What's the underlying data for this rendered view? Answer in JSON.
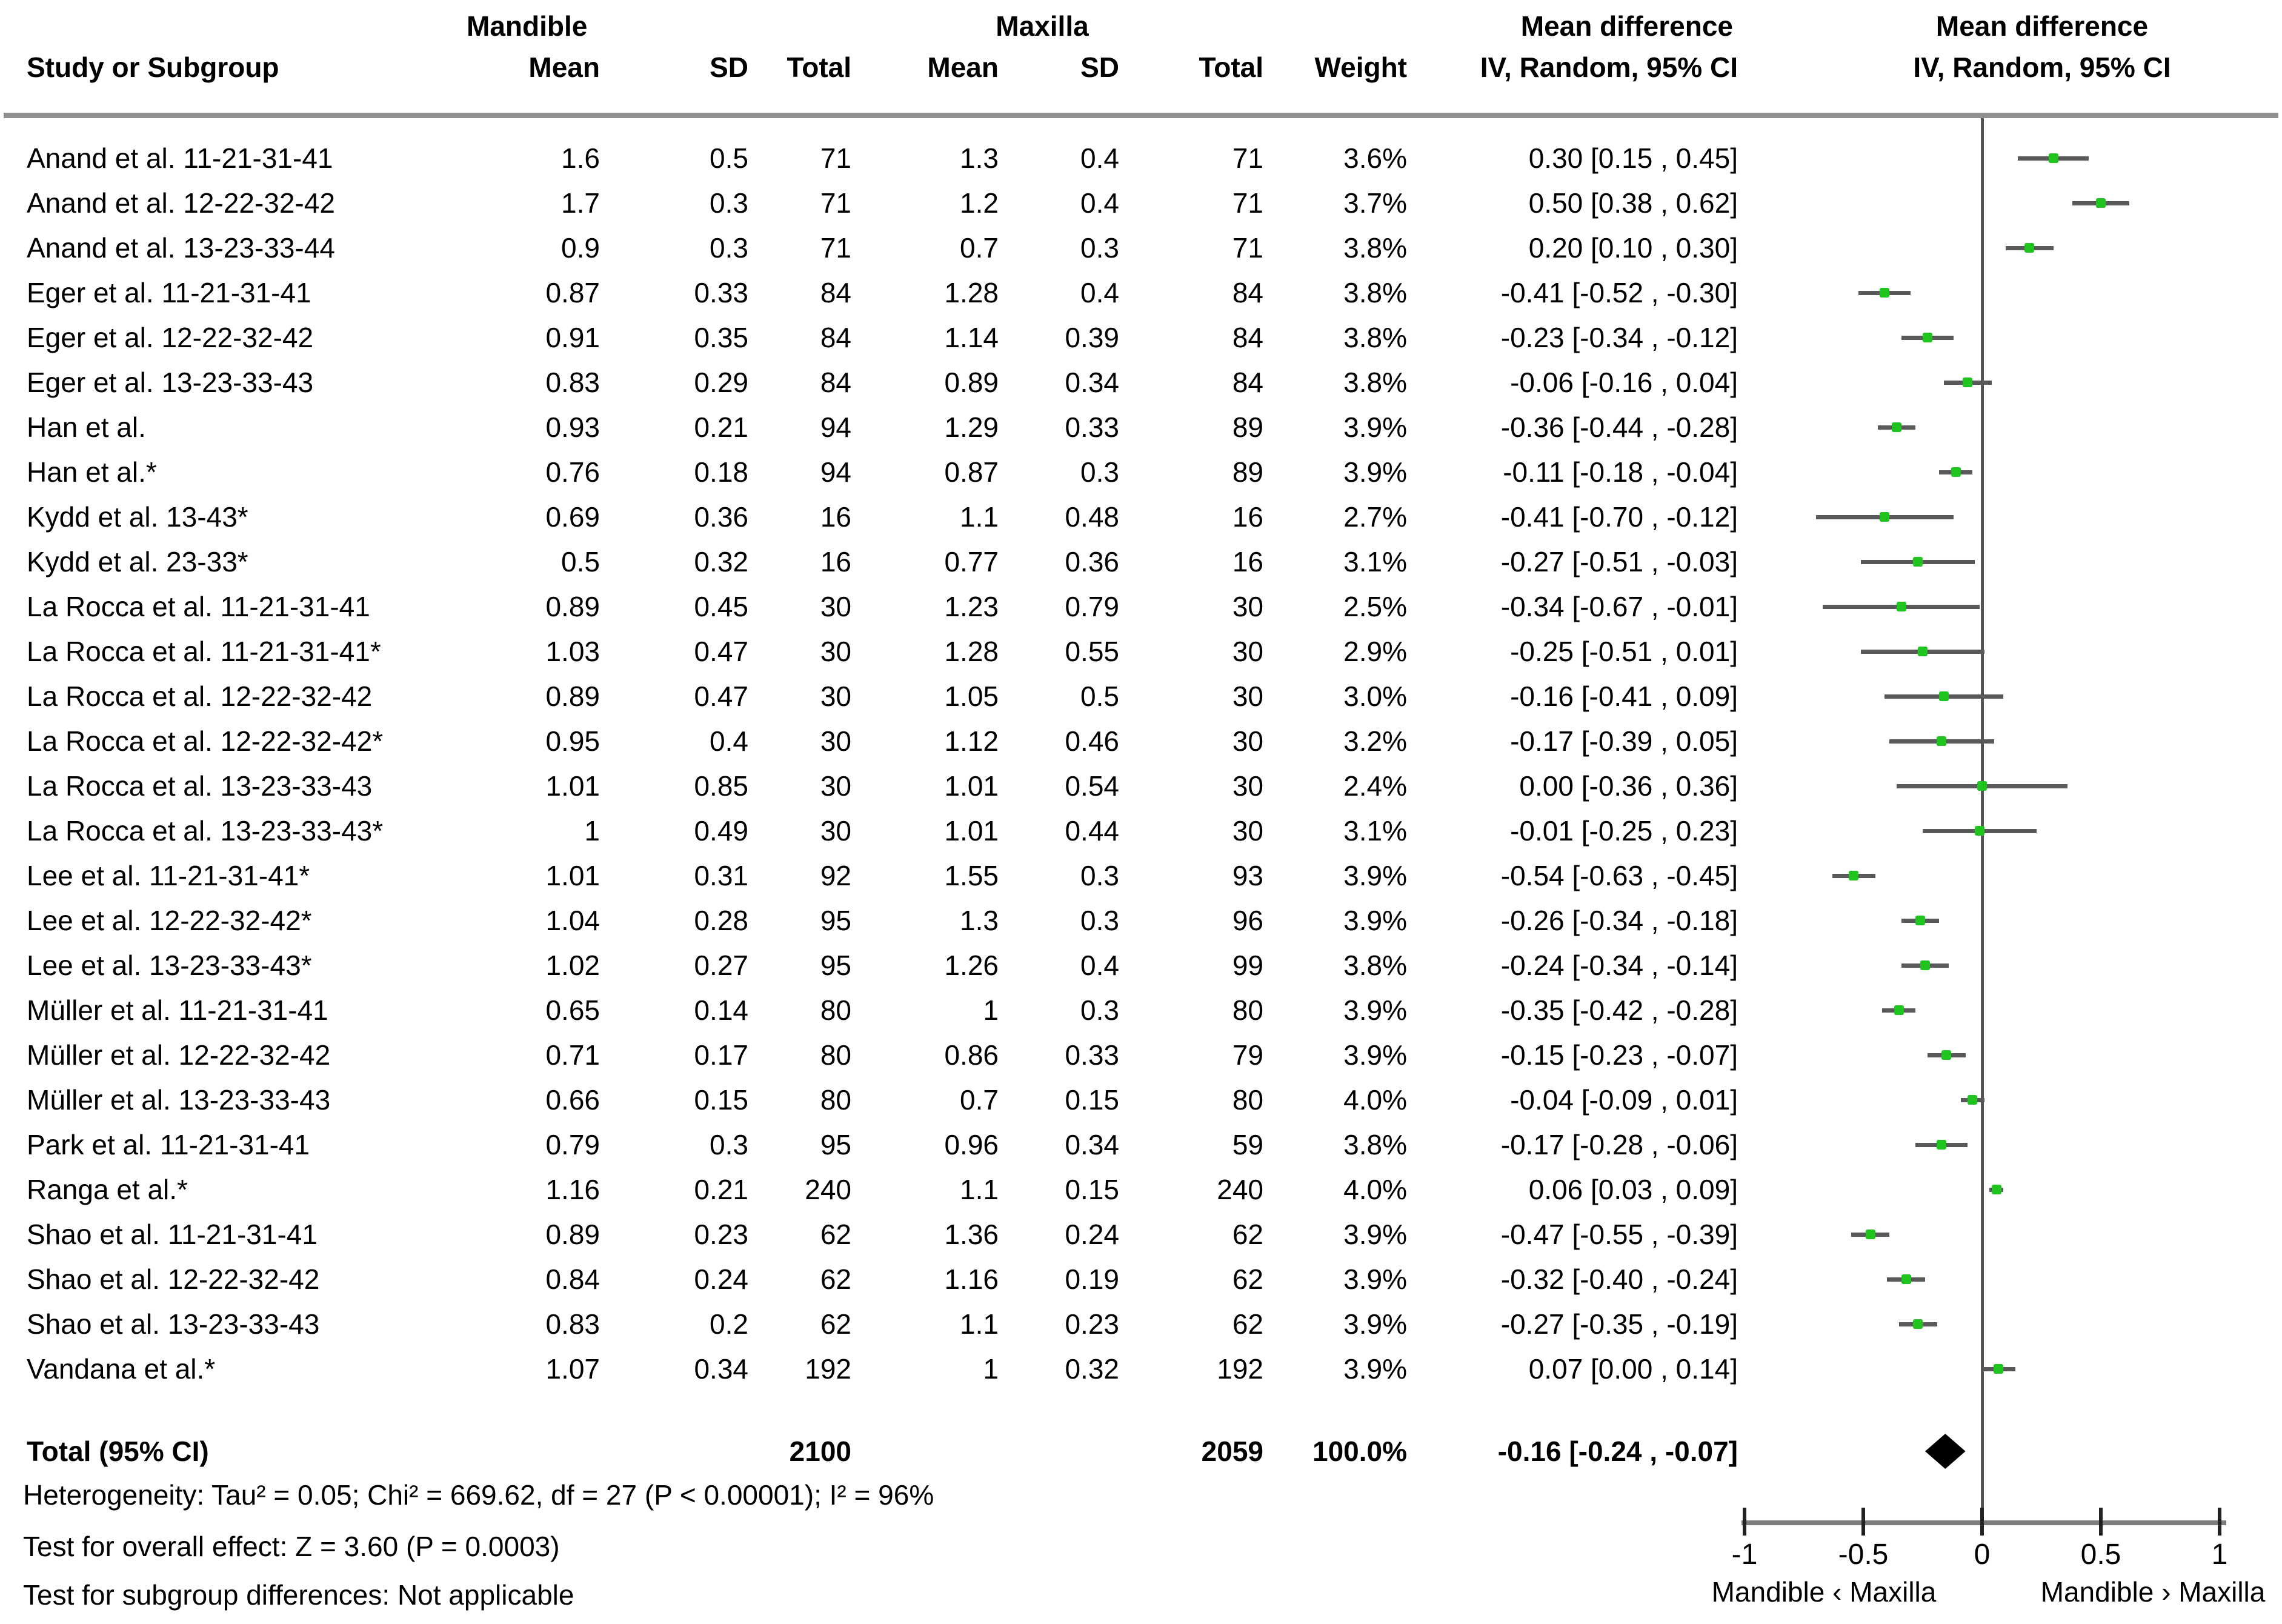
{
  "header": {
    "study_col": "Study or Subgroup",
    "group1": "Mandible",
    "group2": "Maxilla",
    "mean1": "Mean",
    "sd1": "SD",
    "total1": "Total",
    "mean2": "Mean",
    "sd2": "SD",
    "total2": "Total",
    "weight": "Weight",
    "md_title": "Mean difference",
    "md_sub": "IV, Random, 95% CI",
    "plot_title": "Mean difference",
    "plot_sub": "IV, Random, 95% CI"
  },
  "colors": {
    "marker": "#1fc41f",
    "ci_bar": "#59595b",
    "zero_line": "#555557",
    "axis_line": "#7d7d7d",
    "tick": "#222222",
    "rule": "#8f8f8f",
    "diamond": "#000000",
    "text": "#000000"
  },
  "chart_data": {
    "type": "scatter",
    "subtype": "forest-plot",
    "effect_measure": "Mean difference, IV, Random, 95% CI",
    "axis": {
      "min": -1,
      "max": 1,
      "ticks": [
        -1,
        -0.5,
        0,
        0.5,
        1
      ],
      "tick_labels": [
        "-1",
        "-0.5",
        "0",
        "0.5",
        "1"
      ],
      "left_label": "Mandible ‹ Maxilla",
      "right_label": "Mandible › Maxilla",
      "zero_line": true
    },
    "rows": [
      {
        "study": "Anand et al. 11-21-31-41",
        "m_mean": "1.6",
        "m_sd": "0.5",
        "m_total": "71",
        "x_mean": "1.3",
        "x_sd": "0.4",
        "x_total": "71",
        "weight": "3.6%",
        "est": 0.3,
        "lo": 0.15,
        "hi": 0.45,
        "ci_text": "0.30 [0.15 , 0.45]"
      },
      {
        "study": "Anand et al. 12-22-32-42",
        "m_mean": "1.7",
        "m_sd": "0.3",
        "m_total": "71",
        "x_mean": "1.2",
        "x_sd": "0.4",
        "x_total": "71",
        "weight": "3.7%",
        "est": 0.5,
        "lo": 0.38,
        "hi": 0.62,
        "ci_text": "0.50 [0.38 , 0.62]"
      },
      {
        "study": "Anand et al. 13-23-33-44",
        "m_mean": "0.9",
        "m_sd": "0.3",
        "m_total": "71",
        "x_mean": "0.7",
        "x_sd": "0.3",
        "x_total": "71",
        "weight": "3.8%",
        "est": 0.2,
        "lo": 0.1,
        "hi": 0.3,
        "ci_text": "0.20 [0.10 , 0.30]"
      },
      {
        "study": "Eger et al. 11-21-31-41",
        "m_mean": "0.87",
        "m_sd": "0.33",
        "m_total": "84",
        "x_mean": "1.28",
        "x_sd": "0.4",
        "x_total": "84",
        "weight": "3.8%",
        "est": -0.41,
        "lo": -0.52,
        "hi": -0.3,
        "ci_text": "-0.41 [-0.52 , -0.30]"
      },
      {
        "study": "Eger et al. 12-22-32-42",
        "m_mean": "0.91",
        "m_sd": "0.35",
        "m_total": "84",
        "x_mean": "1.14",
        "x_sd": "0.39",
        "x_total": "84",
        "weight": "3.8%",
        "est": -0.23,
        "lo": -0.34,
        "hi": -0.12,
        "ci_text": "-0.23 [-0.34 , -0.12]"
      },
      {
        "study": "Eger et al. 13-23-33-43",
        "m_mean": "0.83",
        "m_sd": "0.29",
        "m_total": "84",
        "x_mean": "0.89",
        "x_sd": "0.34",
        "x_total": "84",
        "weight": "3.8%",
        "est": -0.06,
        "lo": -0.16,
        "hi": 0.04,
        "ci_text": "-0.06 [-0.16 , 0.04]"
      },
      {
        "study": "Han et al.",
        "m_mean": "0.93",
        "m_sd": "0.21",
        "m_total": "94",
        "x_mean": "1.29",
        "x_sd": "0.33",
        "x_total": "89",
        "weight": "3.9%",
        "est": -0.36,
        "lo": -0.44,
        "hi": -0.28,
        "ci_text": "-0.36 [-0.44 , -0.28]"
      },
      {
        "study": "Han et al.*",
        "m_mean": "0.76",
        "m_sd": "0.18",
        "m_total": "94",
        "x_mean": "0.87",
        "x_sd": "0.3",
        "x_total": "89",
        "weight": "3.9%",
        "est": -0.11,
        "lo": -0.18,
        "hi": -0.04,
        "ci_text": "-0.11 [-0.18 , -0.04]"
      },
      {
        "study": "Kydd et al. 13-43*",
        "m_mean": "0.69",
        "m_sd": "0.36",
        "m_total": "16",
        "x_mean": "1.1",
        "x_sd": "0.48",
        "x_total": "16",
        "weight": "2.7%",
        "est": -0.41,
        "lo": -0.7,
        "hi": -0.12,
        "ci_text": "-0.41 [-0.70 , -0.12]"
      },
      {
        "study": "Kydd et al. 23-33*",
        "m_mean": "0.5",
        "m_sd": "0.32",
        "m_total": "16",
        "x_mean": "0.77",
        "x_sd": "0.36",
        "x_total": "16",
        "weight": "3.1%",
        "est": -0.27,
        "lo": -0.51,
        "hi": -0.03,
        "ci_text": "-0.27 [-0.51 , -0.03]"
      },
      {
        "study": "La Rocca et al. 11-21-31-41",
        "m_mean": "0.89",
        "m_sd": "0.45",
        "m_total": "30",
        "x_mean": "1.23",
        "x_sd": "0.79",
        "x_total": "30",
        "weight": "2.5%",
        "est": -0.34,
        "lo": -0.67,
        "hi": -0.01,
        "ci_text": "-0.34 [-0.67 , -0.01]"
      },
      {
        "study": "La Rocca et al. 11-21-31-41*",
        "m_mean": "1.03",
        "m_sd": "0.47",
        "m_total": "30",
        "x_mean": "1.28",
        "x_sd": "0.55",
        "x_total": "30",
        "weight": "2.9%",
        "est": -0.25,
        "lo": -0.51,
        "hi": 0.01,
        "ci_text": "-0.25 [-0.51 , 0.01]"
      },
      {
        "study": "La Rocca et al. 12-22-32-42",
        "m_mean": "0.89",
        "m_sd": "0.47",
        "m_total": "30",
        "x_mean": "1.05",
        "x_sd": "0.5",
        "x_total": "30",
        "weight": "3.0%",
        "est": -0.16,
        "lo": -0.41,
        "hi": 0.09,
        "ci_text": "-0.16 [-0.41 , 0.09]"
      },
      {
        "study": "La Rocca et al. 12-22-32-42*",
        "m_mean": "0.95",
        "m_sd": "0.4",
        "m_total": "30",
        "x_mean": "1.12",
        "x_sd": "0.46",
        "x_total": "30",
        "weight": "3.2%",
        "est": -0.17,
        "lo": -0.39,
        "hi": 0.05,
        "ci_text": "-0.17 [-0.39 , 0.05]"
      },
      {
        "study": "La Rocca et al. 13-23-33-43",
        "m_mean": "1.01",
        "m_sd": "0.85",
        "m_total": "30",
        "x_mean": "1.01",
        "x_sd": "0.54",
        "x_total": "30",
        "weight": "2.4%",
        "est": 0.0,
        "lo": -0.36,
        "hi": 0.36,
        "ci_text": "0.00 [-0.36 , 0.36]"
      },
      {
        "study": "La Rocca et al. 13-23-33-43*",
        "m_mean": "1",
        "m_sd": "0.49",
        "m_total": "30",
        "x_mean": "1.01",
        "x_sd": "0.44",
        "x_total": "30",
        "weight": "3.1%",
        "est": -0.01,
        "lo": -0.25,
        "hi": 0.23,
        "ci_text": "-0.01 [-0.25 , 0.23]"
      },
      {
        "study": "Lee et al. 11-21-31-41*",
        "m_mean": "1.01",
        "m_sd": "0.31",
        "m_total": "92",
        "x_mean": "1.55",
        "x_sd": "0.3",
        "x_total": "93",
        "weight": "3.9%",
        "est": -0.54,
        "lo": -0.63,
        "hi": -0.45,
        "ci_text": "-0.54 [-0.63 , -0.45]"
      },
      {
        "study": "Lee et al. 12-22-32-42*",
        "m_mean": "1.04",
        "m_sd": "0.28",
        "m_total": "95",
        "x_mean": "1.3",
        "x_sd": "0.3",
        "x_total": "96",
        "weight": "3.9%",
        "est": -0.26,
        "lo": -0.34,
        "hi": -0.18,
        "ci_text": "-0.26 [-0.34 , -0.18]"
      },
      {
        "study": "Lee et al. 13-23-33-43*",
        "m_mean": "1.02",
        "m_sd": "0.27",
        "m_total": "95",
        "x_mean": "1.26",
        "x_sd": "0.4",
        "x_total": "99",
        "weight": "3.8%",
        "est": -0.24,
        "lo": -0.34,
        "hi": -0.14,
        "ci_text": "-0.24 [-0.34 , -0.14]"
      },
      {
        "study": "Müller et al. 11-21-31-41",
        "m_mean": "0.65",
        "m_sd": "0.14",
        "m_total": "80",
        "x_mean": "1",
        "x_sd": "0.3",
        "x_total": "80",
        "weight": "3.9%",
        "est": -0.35,
        "lo": -0.42,
        "hi": -0.28,
        "ci_text": "-0.35 [-0.42 , -0.28]"
      },
      {
        "study": "Müller et al. 12-22-32-42",
        "m_mean": "0.71",
        "m_sd": "0.17",
        "m_total": "80",
        "x_mean": "0.86",
        "x_sd": "0.33",
        "x_total": "79",
        "weight": "3.9%",
        "est": -0.15,
        "lo": -0.23,
        "hi": -0.07,
        "ci_text": "-0.15 [-0.23 , -0.07]"
      },
      {
        "study": "Müller et al. 13-23-33-43",
        "m_mean": "0.66",
        "m_sd": "0.15",
        "m_total": "80",
        "x_mean": "0.7",
        "x_sd": "0.15",
        "x_total": "80",
        "weight": "4.0%",
        "est": -0.04,
        "lo": -0.09,
        "hi": 0.01,
        "ci_text": "-0.04 [-0.09 , 0.01]"
      },
      {
        "study": "Park et al. 11-21-31-41",
        "m_mean": "0.79",
        "m_sd": "0.3",
        "m_total": "95",
        "x_mean": "0.96",
        "x_sd": "0.34",
        "x_total": "59",
        "weight": "3.8%",
        "est": -0.17,
        "lo": -0.28,
        "hi": -0.06,
        "ci_text": "-0.17 [-0.28 , -0.06]"
      },
      {
        "study": "Ranga et al.*",
        "m_mean": "1.16",
        "m_sd": "0.21",
        "m_total": "240",
        "x_mean": "1.1",
        "x_sd": "0.15",
        "x_total": "240",
        "weight": "4.0%",
        "est": 0.06,
        "lo": 0.03,
        "hi": 0.09,
        "ci_text": "0.06 [0.03 , 0.09]"
      },
      {
        "study": "Shao et al. 11-21-31-41",
        "m_mean": "0.89",
        "m_sd": "0.23",
        "m_total": "62",
        "x_mean": "1.36",
        "x_sd": "0.24",
        "x_total": "62",
        "weight": "3.9%",
        "est": -0.47,
        "lo": -0.55,
        "hi": -0.39,
        "ci_text": "-0.47 [-0.55 , -0.39]"
      },
      {
        "study": "Shao et al. 12-22-32-42",
        "m_mean": "0.84",
        "m_sd": "0.24",
        "m_total": "62",
        "x_mean": "1.16",
        "x_sd": "0.19",
        "x_total": "62",
        "weight": "3.9%",
        "est": -0.32,
        "lo": -0.4,
        "hi": -0.24,
        "ci_text": "-0.32 [-0.40 , -0.24]"
      },
      {
        "study": "Shao et al. 13-23-33-43",
        "m_mean": "0.83",
        "m_sd": "0.2",
        "m_total": "62",
        "x_mean": "1.1",
        "x_sd": "0.23",
        "x_total": "62",
        "weight": "3.9%",
        "est": -0.27,
        "lo": -0.35,
        "hi": -0.19,
        "ci_text": "-0.27 [-0.35 , -0.19]"
      },
      {
        "study": "Vandana et al.*",
        "m_mean": "1.07",
        "m_sd": "0.34",
        "m_total": "192",
        "x_mean": "1",
        "x_sd": "0.32",
        "x_total": "192",
        "weight": "3.9%",
        "est": 0.07,
        "lo": 0.0,
        "hi": 0.14,
        "ci_text": "0.07 [0.00 , 0.14]"
      }
    ],
    "total": {
      "label": "Total (95% CI)",
      "m_total": "2100",
      "x_total": "2059",
      "weight": "100.0%",
      "est": -0.16,
      "lo": -0.24,
      "hi": -0.07,
      "ci_text": "-0.16 [-0.24 , -0.07]"
    },
    "footnotes": [
      "Heterogeneity: Tau² = 0.05; Chi² = 669.62, df = 27 (P < 0.00001); I² = 96%",
      "Test for overall effect: Z = 3.60 (P = 0.0003)",
      "Test for subgroup differences: Not applicable"
    ]
  }
}
